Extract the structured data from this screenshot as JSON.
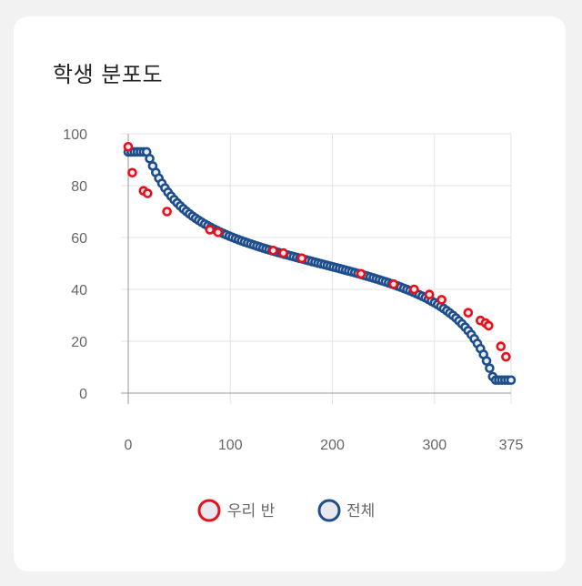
{
  "card": {
    "title": "학생 분포도"
  },
  "chart_data": {
    "type": "scatter",
    "title": "학생 분포도",
    "xlabel": "",
    "ylabel": "",
    "xlim": [
      0,
      375
    ],
    "ylim": [
      0,
      100
    ],
    "x_ticks": [
      0,
      100,
      200,
      300,
      375
    ],
    "y_ticks": [
      0,
      20,
      40,
      60,
      80,
      100
    ],
    "grid": true,
    "legend": "bottom",
    "series": [
      {
        "name": "우리 반",
        "color": "#e8101c",
        "points": [
          [
            0,
            95
          ],
          [
            4,
            85
          ],
          [
            15,
            78
          ],
          [
            19,
            77
          ],
          [
            38,
            70
          ],
          [
            80,
            63
          ],
          [
            88,
            62
          ],
          [
            142,
            55
          ],
          [
            152,
            54
          ],
          [
            170,
            52
          ],
          [
            228,
            46
          ],
          [
            260,
            42
          ],
          [
            280,
            40
          ],
          [
            295,
            38
          ],
          [
            307,
            36
          ],
          [
            333,
            31
          ],
          [
            345,
            28
          ],
          [
            350,
            27
          ],
          [
            353,
            26
          ],
          [
            365,
            18
          ],
          [
            370,
            14
          ]
        ]
      },
      {
        "name": "전체",
        "color": "#1f4e8c",
        "curve": true,
        "n": 376,
        "step": 3
      }
    ]
  }
}
